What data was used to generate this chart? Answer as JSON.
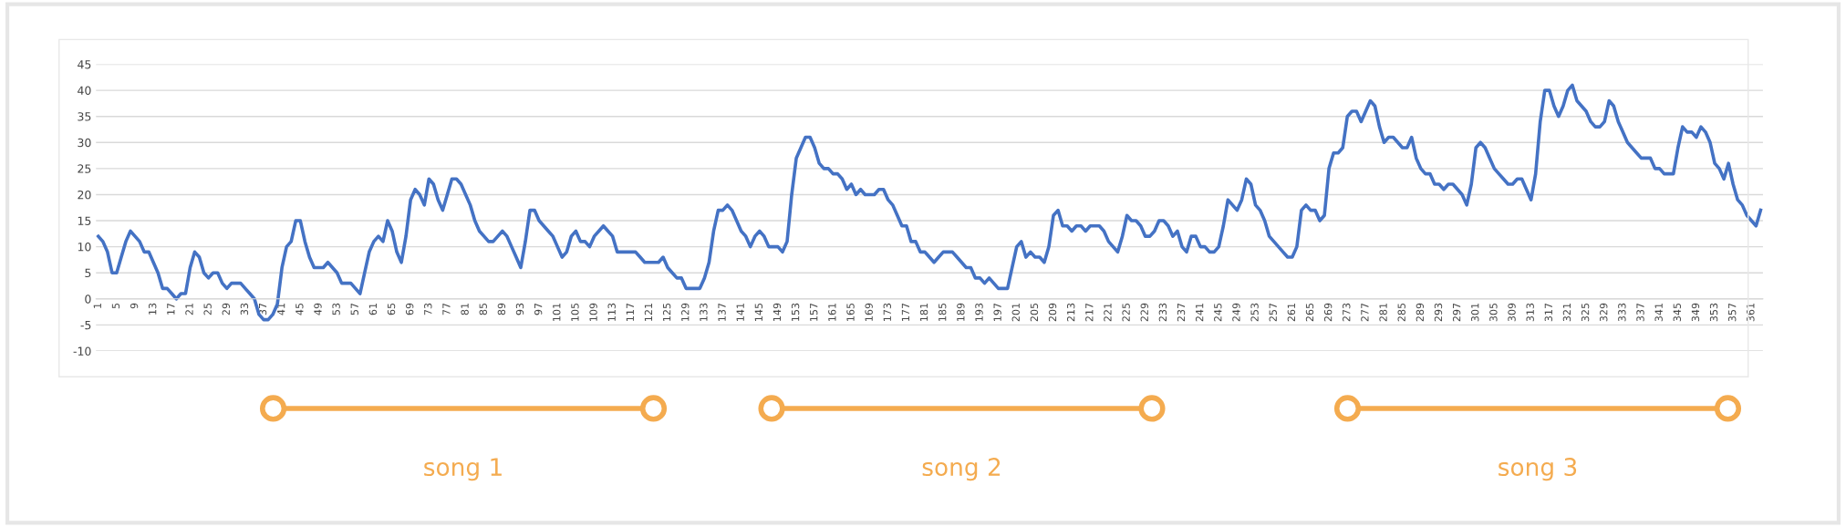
{
  "chart_data": {
    "type": "line",
    "categories": [
      "1",
      null,
      null,
      null,
      "5",
      null,
      null,
      null,
      "9",
      null,
      null,
      null,
      "13",
      null,
      null,
      null,
      "17",
      null,
      null,
      null,
      "21",
      null,
      null,
      null,
      "25",
      null,
      null,
      null,
      "29",
      null,
      null,
      null,
      "33",
      null,
      null,
      null,
      "37",
      null,
      null,
      null,
      "41",
      null,
      null,
      null,
      "45",
      null,
      null,
      null,
      "49",
      null,
      null,
      null,
      "53",
      null,
      null,
      null,
      "57",
      null,
      null,
      null,
      "61",
      null,
      null,
      null,
      "65",
      null,
      null,
      null,
      "69",
      null,
      null,
      null,
      "73",
      null,
      null,
      null,
      "77",
      null,
      null,
      null,
      "81",
      null,
      null,
      null,
      "85",
      null,
      null,
      null,
      "89",
      null,
      null,
      null,
      "93",
      null,
      null,
      null,
      "97",
      null,
      null,
      null,
      "101",
      null,
      null,
      null,
      "105",
      null,
      null,
      null,
      "109",
      null,
      null,
      null,
      "113",
      null,
      null,
      null,
      "117",
      null,
      null,
      null,
      "121",
      null,
      null,
      null,
      "125",
      null,
      null,
      null,
      "129",
      null,
      null,
      null,
      "133",
      null,
      null,
      null,
      "137",
      null,
      null,
      null,
      "141",
      null,
      null,
      null,
      "145",
      null,
      null,
      null,
      "149",
      null,
      null,
      null,
      "153",
      null,
      null,
      null,
      "157",
      null,
      null,
      null,
      "161",
      null,
      null,
      null,
      "165",
      null,
      null,
      null,
      "169",
      null,
      null,
      null,
      "173",
      null,
      null,
      null,
      "177",
      null,
      null,
      null,
      "181",
      null,
      null,
      null,
      "185",
      null,
      null,
      null,
      "189",
      null,
      null,
      null,
      "193",
      null,
      null,
      null,
      "197",
      null,
      null,
      null,
      "201",
      null,
      null,
      null,
      "205",
      null,
      null,
      null,
      "209",
      null,
      null,
      null,
      "213",
      null,
      null,
      null,
      "217",
      null,
      null,
      null,
      "221",
      null,
      null,
      null,
      "225",
      null,
      null,
      null,
      "229",
      null,
      null,
      null,
      "233",
      null,
      null,
      null,
      "237",
      null,
      null,
      null,
      "241",
      null,
      null,
      null,
      "245",
      null,
      null,
      null,
      "249",
      null,
      null,
      null,
      "253",
      null,
      null,
      null,
      "257",
      null,
      null,
      null,
      "261",
      null,
      null,
      null,
      "265",
      null,
      null,
      null,
      "269",
      null,
      null,
      null,
      "273",
      null,
      null,
      null,
      "277",
      null,
      null,
      null,
      "281",
      null,
      null,
      null,
      "285",
      null,
      null,
      null,
      "289",
      null,
      null,
      null,
      "293",
      null,
      null,
      null,
      "297",
      null,
      null,
      null,
      "301",
      null,
      null,
      null,
      "305",
      null,
      null,
      null,
      "309",
      null,
      null,
      null,
      "313",
      null,
      null,
      null,
      "317",
      null,
      null,
      null,
      "321",
      null,
      null,
      null,
      "325",
      null,
      null,
      null,
      "329",
      null,
      null,
      null,
      "333",
      null,
      null,
      null,
      "337",
      null,
      null,
      null,
      "341",
      null,
      null,
      null,
      "345",
      null,
      null,
      null,
      "349",
      null,
      null,
      null,
      "353",
      null,
      null,
      null,
      "357",
      null,
      null,
      null,
      "361",
      null,
      null
    ],
    "series": [
      {
        "color": "#4472c4",
        "values": [
          12,
          11,
          9,
          5,
          5,
          8,
          11,
          13,
          12,
          11,
          9,
          9,
          7,
          5,
          2,
          2,
          1,
          0,
          1,
          1,
          6,
          9,
          8,
          5,
          4,
          5,
          5,
          3,
          2,
          3,
          3,
          3,
          2,
          1,
          0,
          -3,
          -4,
          -4,
          -3,
          -1,
          6,
          10,
          11,
          15,
          15,
          11,
          8,
          6,
          6,
          6,
          7,
          6,
          5,
          3,
          3,
          3,
          2,
          1,
          5,
          9,
          11,
          12,
          11,
          15,
          13,
          9,
          7,
          12,
          19,
          21,
          20,
          18,
          23,
          22,
          19,
          17,
          20,
          23,
          23,
          22,
          20,
          18,
          15,
          13,
          12,
          11,
          11,
          12,
          13,
          12,
          10,
          8,
          6,
          11,
          17,
          17,
          15,
          14,
          13,
          12,
          10,
          8,
          9,
          12,
          13,
          11,
          11,
          10,
          12,
          13,
          14,
          13,
          12,
          9,
          9,
          9,
          9,
          9,
          8,
          7,
          7,
          7,
          7,
          8,
          6,
          5,
          4,
          4,
          2,
          2,
          2,
          2,
          4,
          7,
          13,
          17,
          17,
          18,
          17,
          15,
          13,
          12,
          10,
          12,
          13,
          12,
          10,
          10,
          10,
          9,
          11,
          20,
          27,
          29,
          31,
          31,
          29,
          26,
          25,
          25,
          24,
          24,
          23,
          21,
          22,
          20,
          21,
          20,
          20,
          20,
          21,
          21,
          19,
          18,
          16,
          14,
          14,
          11,
          11,
          9,
          9,
          8,
          7,
          8,
          9,
          9,
          9,
          8,
          7,
          6,
          6,
          4,
          4,
          3,
          4,
          3,
          2,
          2,
          2,
          6,
          10,
          11,
          8,
          9,
          8,
          8,
          7,
          10,
          16,
          17,
          14,
          14,
          13,
          14,
          14,
          13,
          14,
          14,
          14,
          13,
          11,
          10,
          9,
          12,
          16,
          15,
          15,
          14,
          12,
          12,
          13,
          15,
          15,
          14,
          12,
          13,
          10,
          9,
          12,
          12,
          10,
          10,
          9,
          9,
          10,
          14,
          19,
          18,
          17,
          19,
          23,
          22,
          18,
          17,
          15,
          12,
          11,
          10,
          9,
          8,
          8,
          10,
          17,
          18,
          17,
          17,
          15,
          16,
          25,
          28,
          28,
          29,
          35,
          36,
          36,
          34,
          36,
          38,
          37,
          33,
          30,
          31,
          31,
          30,
          29,
          29,
          31,
          27,
          25,
          24,
          24,
          22,
          22,
          21,
          22,
          22,
          21,
          20,
          18,
          22,
          29,
          30,
          29,
          27,
          25,
          24,
          23,
          22,
          22,
          23,
          23,
          21,
          19,
          24,
          34,
          40,
          40,
          37,
          35,
          37,
          40,
          41,
          38,
          37,
          36,
          34,
          33,
          33,
          34,
          38,
          37,
          34,
          32,
          30,
          29,
          28,
          27,
          27,
          27,
          25,
          25,
          24,
          24,
          24,
          29,
          33,
          32,
          32,
          31,
          33,
          32,
          30,
          26,
          25,
          23,
          26,
          22,
          19,
          18,
          16,
          15,
          14,
          17
        ]
      }
    ],
    "ylim": [
      -10,
      45
    ],
    "yticks": [
      -10,
      -5,
      0,
      5,
      10,
      15,
      20,
      25,
      30,
      35,
      40,
      45
    ],
    "grid": "y",
    "annotations": [
      "song 1",
      "song 2",
      "song 3"
    ]
  }
}
